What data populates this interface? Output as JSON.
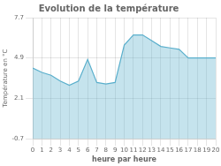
{
  "chart_data": {
    "type": "line",
    "title": "Evolution de la température",
    "xlabel": "heure par heure",
    "ylabel": "Température en °C",
    "x": [
      0,
      1,
      2,
      3,
      4,
      5,
      6,
      7,
      8,
      9,
      10,
      11,
      12,
      13,
      14,
      15,
      16,
      17,
      18,
      19,
      20
    ],
    "values": [
      4.2,
      3.9,
      3.7,
      3.3,
      3.0,
      3.3,
      4.8,
      3.2,
      3.1,
      3.2,
      5.8,
      6.5,
      6.5,
      6.1,
      5.7,
      5.6,
      5.5,
      4.9,
      4.9,
      4.9,
      4.9
    ],
    "color": "#5aafcc",
    "xlim": [
      0,
      20
    ],
    "xticks": [
      0,
      1,
      2,
      3,
      4,
      5,
      6,
      7,
      8,
      9,
      10,
      11,
      12,
      13,
      14,
      15,
      16,
      17,
      18,
      19,
      20
    ],
    "ylim": [
      -0.7,
      7.7
    ],
    "yticks": [
      -0.7,
      2.1,
      4.9,
      7.7
    ],
    "grid": true
  }
}
